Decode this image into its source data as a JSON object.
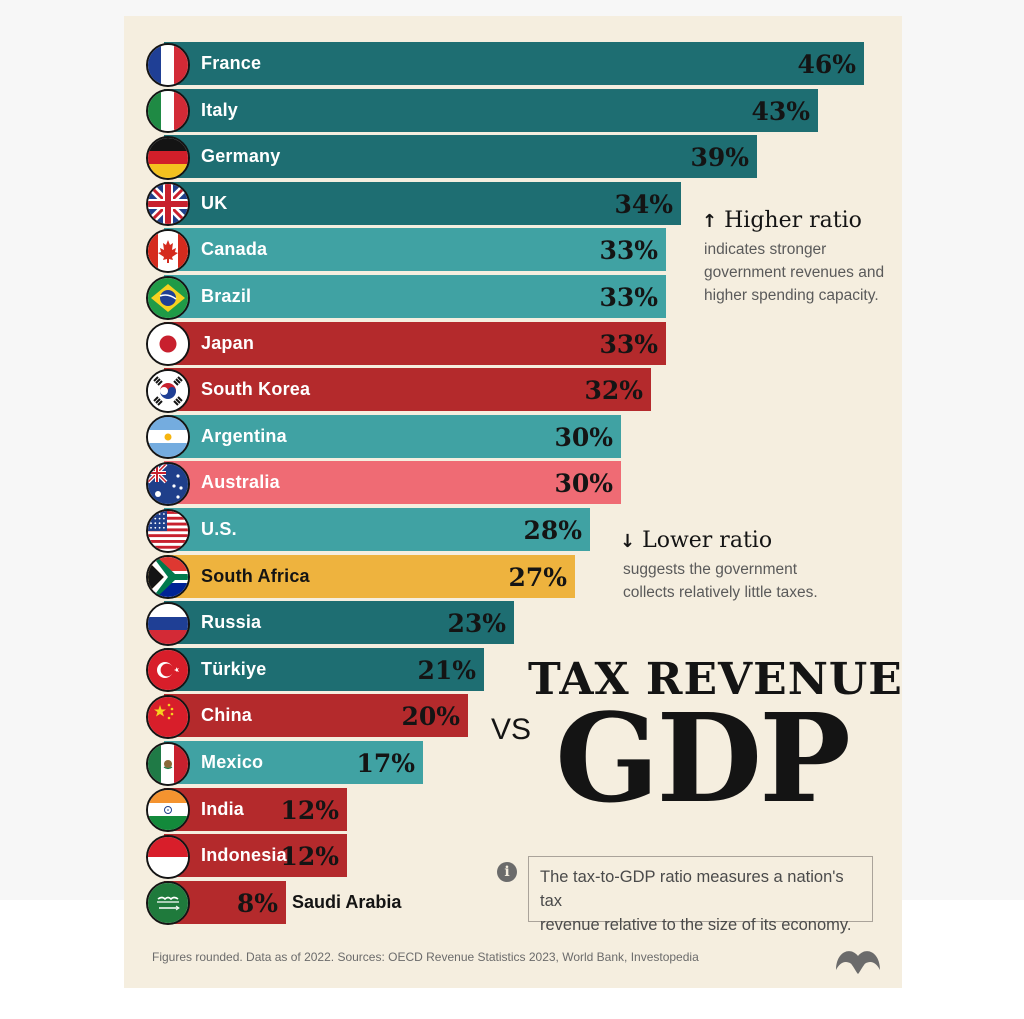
{
  "chart_data": {
    "type": "bar",
    "orientation": "horizontal",
    "categories": [
      "France",
      "Italy",
      "Germany",
      "UK",
      "Canada",
      "Brazil",
      "Japan",
      "South Korea",
      "Argentina",
      "Australia",
      "U.S.",
      "South Africa",
      "Russia",
      "Türkiye",
      "China",
      "Mexico",
      "India",
      "Indonesia",
      "Saudi Arabia"
    ],
    "values": [
      46,
      43,
      39,
      34,
      33,
      33,
      33,
      32,
      30,
      30,
      28,
      27,
      23,
      21,
      20,
      17,
      12,
      12,
      8
    ],
    "value_labels": [
      "46%",
      "43%",
      "39%",
      "34%",
      "33%",
      "33%",
      "33%",
      "32%",
      "30%",
      "30%",
      "28%",
      "27%",
      "23%",
      "21%",
      "20%",
      "17%",
      "12%",
      "12%",
      "8%"
    ],
    "bar_colors": [
      "#1e6e72",
      "#1e6e72",
      "#1e6e72",
      "#1e6e72",
      "#40a2a3",
      "#40a2a3",
      "#b42a2c",
      "#b42a2c",
      "#40a2a3",
      "#ef6b74",
      "#40a2a3",
      "#eeb33e",
      "#1e6e72",
      "#1e6e72",
      "#b42a2c",
      "#40a2a3",
      "#b42a2c",
      "#b42a2c",
      "#b42a2c"
    ],
    "label_colors": [
      "#ffffff",
      "#ffffff",
      "#ffffff",
      "#ffffff",
      "#ffffff",
      "#ffffff",
      "#ffffff",
      "#ffffff",
      "#ffffff",
      "#ffffff",
      "#ffffff",
      "#141414",
      "#ffffff",
      "#ffffff",
      "#ffffff",
      "#ffffff",
      "#ffffff",
      "#ffffff",
      "#141414"
    ],
    "flag_icons": [
      "france-flag-icon",
      "italy-flag-icon",
      "germany-flag-icon",
      "uk-flag-icon",
      "canada-flag-icon",
      "brazil-flag-icon",
      "japan-flag-icon",
      "south-korea-flag-icon",
      "argentina-flag-icon",
      "australia-flag-icon",
      "us-flag-icon",
      "south-africa-flag-icon",
      "russia-flag-icon",
      "turkiye-flag-icon",
      "china-flag-icon",
      "mexico-flag-icon",
      "india-flag-icon",
      "indonesia-flag-icon",
      "saudi-arabia-flag-icon"
    ],
    "xlim": [
      0,
      46
    ],
    "grid": false,
    "legend": "none",
    "unit": "%"
  },
  "notes": {
    "higher": {
      "arrow": "↑",
      "heading": "Higher ratio",
      "line1": "indicates stronger",
      "line2": "government revenues and",
      "line3": "higher spending capacity."
    },
    "lower": {
      "arrow": "↓",
      "heading": "Lower ratio",
      "line1": "suggests the government",
      "line2": "collects relatively little taxes."
    }
  },
  "title": {
    "line1": "TAX REVENUE",
    "vs": "VS",
    "line2": "GDP"
  },
  "info": {
    "icon": "info-icon",
    "text1": "The tax-to-GDP ratio measures a nation's tax",
    "text2": "revenue relative to the size of its economy."
  },
  "footer": "Figures rounded. Data as of 2022. Sources: OECD Revenue Statistics 2023, World Bank, Investopedia",
  "logo": "visual-capitalist-logo-icon"
}
